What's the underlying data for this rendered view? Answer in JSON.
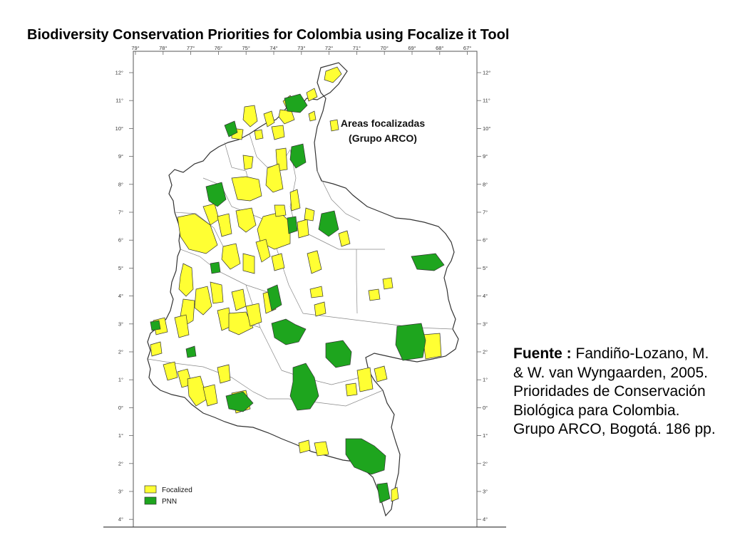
{
  "slide": {
    "title": "Biodiversity Conservation Priorities for Colombia  using Focalize it Tool"
  },
  "map": {
    "heading_line1": "Areas focalizadas",
    "heading_line2": "(Grupo ARCO)",
    "lon_ticks": [
      "79°",
      "78°",
      "77°",
      "76°",
      "75°",
      "74°",
      "73°",
      "72°",
      "71°",
      "70°",
      "69°",
      "68°",
      "67°"
    ],
    "lat_ticks": [
      "12°",
      "11°",
      "10°",
      "9°",
      "8°",
      "7°",
      "6°",
      "5°",
      "4°",
      "3°",
      "2°",
      "1°",
      "0°",
      "1°",
      "2°",
      "3°",
      "4°"
    ],
    "legend": [
      {
        "label": "Focalized",
        "color": "#ffff33"
      },
      {
        "label": "PNN",
        "color": "#1ea51e"
      }
    ]
  },
  "source": {
    "label": "Fuente :",
    "text": "Fandiño-Lozano, M. & W. van Wyngaarden, 2005. Prioridades de Conservación Biológica para Colombia. Grupo ARCO, Bogotá. 186 pp."
  }
}
